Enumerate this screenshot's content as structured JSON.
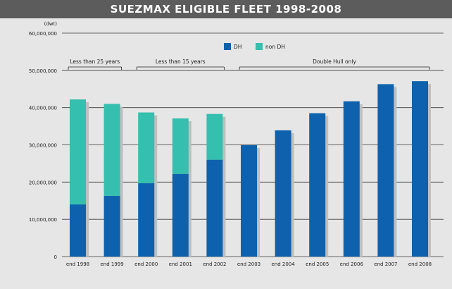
{
  "header": {
    "title": "SUEZMAX ELIGIBLE FLEET 1998-2008"
  },
  "chart_data": {
    "type": "bar",
    "stacked": true,
    "title": "SUEZMAX ELIGIBLE FLEET 1998-2008",
    "ylabel": "(dwt)",
    "xlabel": "",
    "ylim": [
      0,
      60000000
    ],
    "y_ticks": [
      0,
      10000000,
      20000000,
      30000000,
      40000000,
      50000000,
      60000000
    ],
    "y_tick_labels": [
      "0",
      "10,000,000",
      "20,000,000",
      "30,000,000",
      "40,000,000",
      "50,000,000",
      "60,000,000"
    ],
    "grid": true,
    "legend_position": "top-right",
    "categories": [
      "end 1998",
      "end 1999",
      "end 2000",
      "end 2001",
      "end 2002",
      "end 2003",
      "end 2004",
      "end 2005",
      "end 2006",
      "end 2007",
      "end 2008"
    ],
    "series": [
      {
        "name": "DH",
        "color": "#0e62ad",
        "values": [
          14000000,
          16300000,
          19700000,
          22200000,
          26000000,
          29900000,
          33900000,
          38500000,
          41700000,
          46300000,
          47100000
        ]
      },
      {
        "name": "non DH",
        "color": "#35bfae",
        "values": [
          28200000,
          24700000,
          19000000,
          14900000,
          12300000,
          0,
          0,
          0,
          0,
          0,
          0
        ]
      }
    ],
    "annotations": [
      {
        "text": "Less than 25 years",
        "from_index": 0,
        "to_index": 1
      },
      {
        "text": "Less than 15 years",
        "from_index": 2,
        "to_index": 4
      },
      {
        "text": "Double Hull only",
        "from_index": 5,
        "to_index": 10
      }
    ]
  }
}
